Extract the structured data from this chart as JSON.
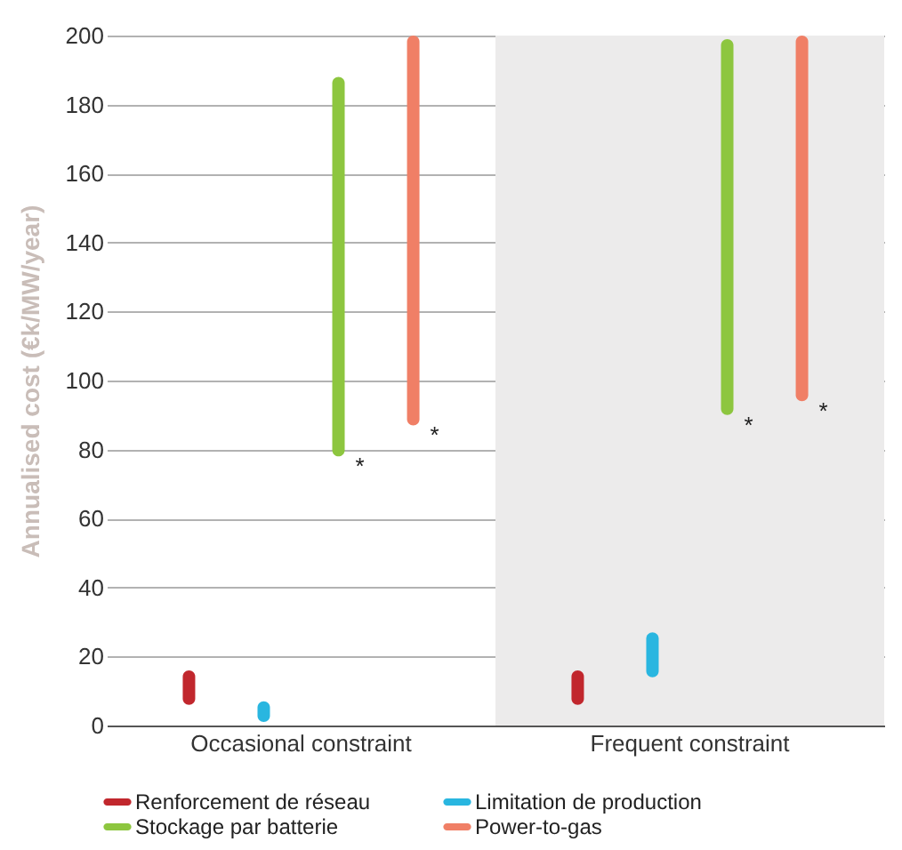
{
  "chart_data": {
    "type": "bar",
    "ylabel": "Annualised cost (€k/MW/year)",
    "categories": [
      "Occasional constraint",
      "Frequent constraint"
    ],
    "series": [
      {
        "name": "Renforcement de réseau",
        "color": "#c1272d",
        "base": [
          6,
          6
        ],
        "values": [
          10,
          10
        ]
      },
      {
        "name": "Limitation de production",
        "color": "#29b6e0",
        "base": [
          1,
          14
        ],
        "values": [
          6,
          13
        ]
      },
      {
        "name": "Stockage par batterie",
        "color": "#8dc63f",
        "base": [
          78,
          90
        ],
        "values": [
          110,
          109
        ]
      },
      {
        "name": "Power-to-gas",
        "color": "#f07f66",
        "base": [
          87,
          94
        ],
        "values": [
          113,
          106
        ]
      }
    ],
    "annotations": [
      "*",
      "*",
      "*",
      "*"
    ],
    "bands": [
      {
        "axis": "x",
        "from": "Frequent constraint",
        "to": "Frequent constraint",
        "color": "#ecebeb"
      }
    ],
    "ylim": [
      0,
      200
    ],
    "yticks": [
      0,
      20,
      40,
      60,
      80,
      100,
      120,
      140,
      160,
      180,
      200
    ],
    "grid": "y",
    "legend": "bottom"
  }
}
